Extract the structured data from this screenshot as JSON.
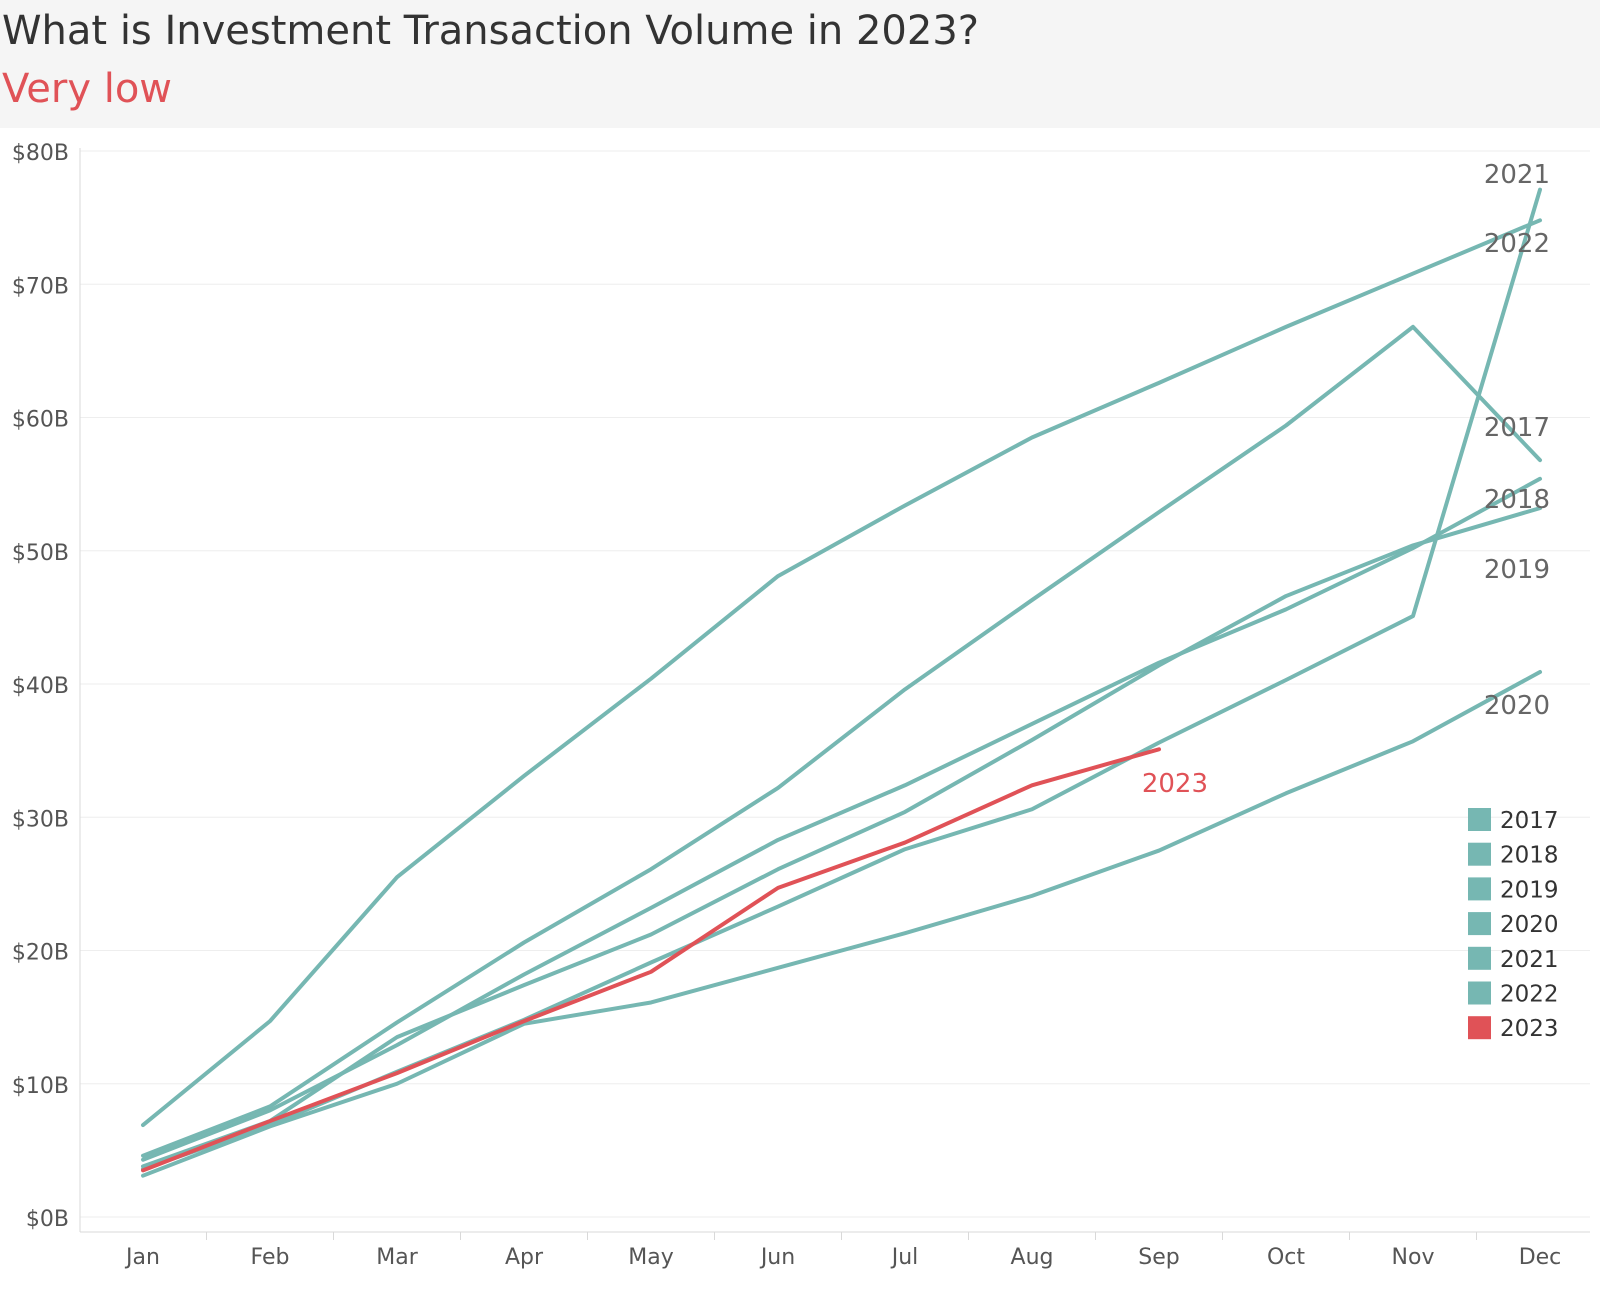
{
  "header": {
    "title": "What is Investment Transaction Volume in 2023?",
    "subtitle": "Very low"
  },
  "colors": {
    "highlight": "#e05257",
    "baseline": "#76b7b2",
    "header_bg": "#f5f5f5",
    "grid": "#eeeeee",
    "axis_text": "#555555",
    "line_label": "#666666"
  },
  "chart_data": {
    "type": "line",
    "title": "What is Investment Transaction Volume in 2023?",
    "subtitle": "Very low",
    "xlabel": "",
    "ylabel": "",
    "categories": [
      "Jan",
      "Feb",
      "Mar",
      "Apr",
      "May",
      "Jun",
      "Jul",
      "Aug",
      "Sep",
      "Oct",
      "Nov",
      "Dec"
    ],
    "ylim": [
      0,
      80
    ],
    "yticks": [
      0,
      10,
      20,
      30,
      40,
      50,
      60,
      70,
      80
    ],
    "ytick_labels": [
      "$0B",
      "$10B",
      "$20B",
      "$30B",
      "$40B",
      "$50B",
      "$60B",
      "$70B",
      "$80B"
    ],
    "grid": true,
    "legend_position": "right",
    "series": [
      {
        "name": "2017",
        "color": "#76b7b2",
        "end_label": "2017",
        "values": [
          4.6,
          8.3,
          14.6,
          20.6,
          26.1,
          32.2,
          39.6,
          46.3,
          52.9,
          59.4,
          66.8,
          56.8
        ]
      },
      {
        "name": "2018",
        "color": "#76b7b2",
        "end_label": "2018",
        "values": [
          4.3,
          8.0,
          12.9,
          18.2,
          23.2,
          28.3,
          32.4,
          37.0,
          41.6,
          45.6,
          50.2,
          55.4
        ]
      },
      {
        "name": "2019",
        "color": "#76b7b2",
        "end_label": "2019",
        "values": [
          3.8,
          7.2,
          13.5,
          17.4,
          21.2,
          26.1,
          30.4,
          35.8,
          41.4,
          46.6,
          50.4,
          53.2
        ]
      },
      {
        "name": "2020",
        "color": "#76b7b2",
        "end_label": "2020",
        "values": [
          3.1,
          6.8,
          10.0,
          14.5,
          16.1,
          18.7,
          21.3,
          24.1,
          27.5,
          31.8,
          35.7,
          40.9
        ]
      },
      {
        "name": "2021",
        "color": "#76b7b2",
        "end_label": "2021",
        "values": [
          3.6,
          6.9,
          10.9,
          14.8,
          19.1,
          23.3,
          27.6,
          30.6,
          35.6,
          40.3,
          45.1,
          77.1
        ]
      },
      {
        "name": "2022",
        "color": "#76b7b2",
        "end_label": "2022",
        "values": [
          6.9,
          14.7,
          25.5,
          33.1,
          40.4,
          48.1,
          53.4,
          58.5,
          62.6,
          66.8,
          70.8,
          74.8
        ]
      },
      {
        "name": "2023",
        "color": "#e05257",
        "end_label": "2023",
        "values": [
          3.5,
          7.2,
          10.8,
          14.7,
          18.4,
          24.7,
          28.1,
          32.4,
          35.1,
          null,
          null,
          null
        ]
      }
    ]
  }
}
